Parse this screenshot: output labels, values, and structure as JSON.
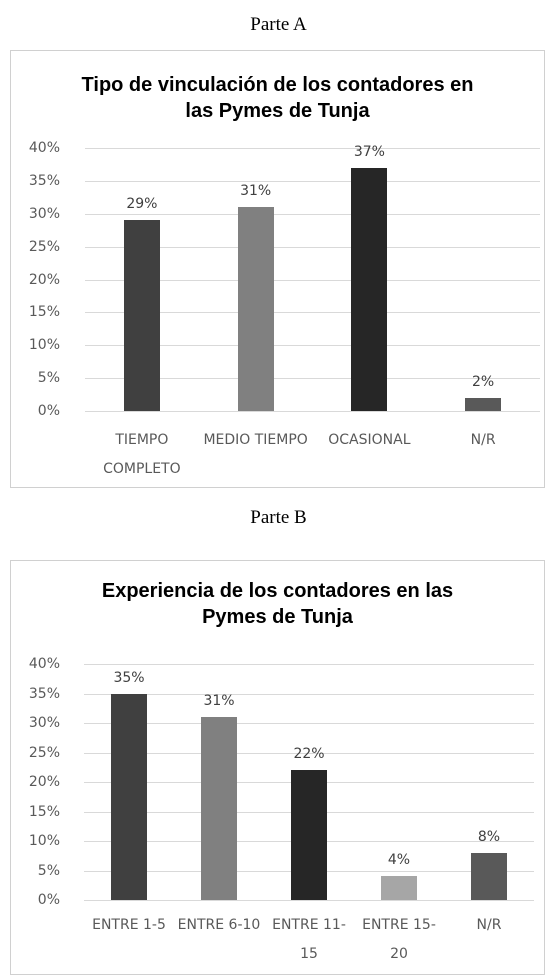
{
  "captions": [
    "Parte A",
    "Parte B"
  ],
  "chart_data": [
    {
      "type": "bar",
      "title": "Tipo de vinculación de los contadores en las Pymes de Tunja",
      "categories": [
        "TIEMPO COMPLETO",
        "MEDIO TIEMPO",
        "OCASIONAL",
        "N/R"
      ],
      "values": [
        29,
        31,
        37,
        2
      ],
      "value_labels": [
        "29%",
        "31%",
        "37%",
        "2%"
      ],
      "colors": [
        "#404040",
        "#808080",
        "#262626",
        "#595959"
      ],
      "ylim": [
        0,
        40
      ],
      "yticks": [
        {
          "value": 0,
          "label": "0%"
        },
        {
          "value": 5,
          "label": "5%"
        },
        {
          "value": 10,
          "label": "10%"
        },
        {
          "value": 15,
          "label": "15%"
        },
        {
          "value": 20,
          "label": "20%"
        },
        {
          "value": 25,
          "label": "25%"
        },
        {
          "value": 30,
          "label": "30%"
        },
        {
          "value": 35,
          "label": "35%"
        },
        {
          "value": 40,
          "label": "40%"
        }
      ],
      "grid": true
    },
    {
      "type": "bar",
      "title": "Experiencia de los contadores en las Pymes de Tunja",
      "categories": [
        "ENTRE 1-5",
        "ENTRE 6-10",
        "ENTRE 11-15",
        "ENTRE 15-20",
        "N/R"
      ],
      "values": [
        35,
        31,
        22,
        4,
        8
      ],
      "value_labels": [
        "35%",
        "31%",
        "22%",
        "4%",
        "8%"
      ],
      "colors": [
        "#404040",
        "#808080",
        "#262626",
        "#a6a6a6",
        "#595959"
      ],
      "ylim": [
        0,
        40
      ],
      "yticks": [
        {
          "value": 0,
          "label": "0%"
        },
        {
          "value": 5,
          "label": "5%"
        },
        {
          "value": 10,
          "label": "10%"
        },
        {
          "value": 15,
          "label": "15%"
        },
        {
          "value": 20,
          "label": "20%"
        },
        {
          "value": 25,
          "label": "25%"
        },
        {
          "value": 30,
          "label": "30%"
        },
        {
          "value": 35,
          "label": "35%"
        },
        {
          "value": 40,
          "label": "40%"
        }
      ],
      "grid": true
    }
  ]
}
